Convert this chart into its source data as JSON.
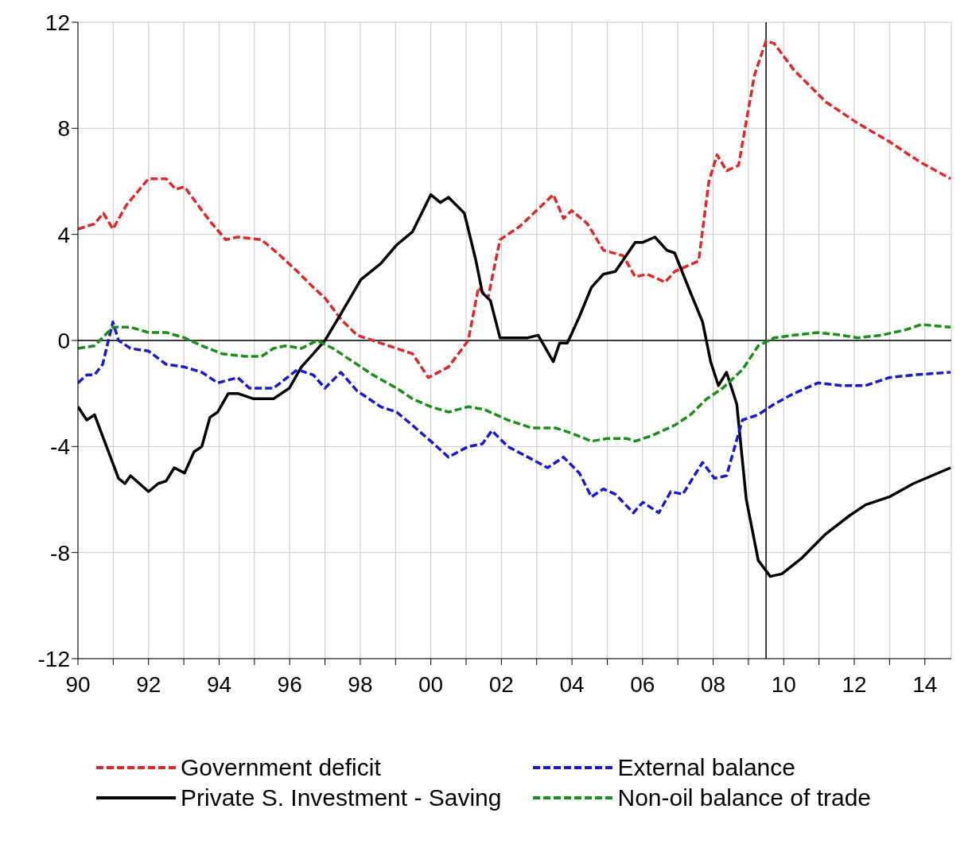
{
  "chart_data": {
    "type": "line",
    "xlim": [
      1990,
      2014.75
    ],
    "ylim": [
      -12,
      12
    ],
    "xticks": [
      {
        "value": 1990,
        "label": "90"
      },
      {
        "value": 1991,
        "label": null
      },
      {
        "value": 1992,
        "label": "92"
      },
      {
        "value": 1993,
        "label": null
      },
      {
        "value": 1994,
        "label": "94"
      },
      {
        "value": 1995,
        "label": null
      },
      {
        "value": 1996,
        "label": "96"
      },
      {
        "value": 1997,
        "label": null
      },
      {
        "value": 1998,
        "label": "98"
      },
      {
        "value": 1999,
        "label": null
      },
      {
        "value": 2000,
        "label": "00"
      },
      {
        "value": 2001,
        "label": null
      },
      {
        "value": 2002,
        "label": "02"
      },
      {
        "value": 2003,
        "label": null
      },
      {
        "value": 2004,
        "label": "04"
      },
      {
        "value": 2005,
        "label": null
      },
      {
        "value": 2006,
        "label": "06"
      },
      {
        "value": 2007,
        "label": null
      },
      {
        "value": 2008,
        "label": "08"
      },
      {
        "value": 2009,
        "label": null
      },
      {
        "value": 2010,
        "label": "10"
      },
      {
        "value": 2011,
        "label": null
      },
      {
        "value": 2012,
        "label": "12"
      },
      {
        "value": 2013,
        "label": null
      },
      {
        "value": 2014,
        "label": "14"
      }
    ],
    "yticks": [
      -12,
      -8,
      -4,
      0,
      4,
      8,
      12
    ],
    "grid": true,
    "legend": "bottom",
    "marker": "none",
    "ref_lines": [
      {
        "axis": "y",
        "value": 0,
        "color": "#000000"
      },
      {
        "axis": "x",
        "value": 2009.5,
        "color": "#000000"
      }
    ],
    "series": [
      {
        "name": "Government deficit",
        "color": "#e02828",
        "line_style": "dashed",
        "x": [
          1990,
          1990.47,
          1990.72,
          1990.99,
          1991.37,
          1992,
          1992.5,
          1992.77,
          1993.02,
          1993.29,
          1993.74,
          1994.19,
          1994.53,
          1995.2,
          1995.65,
          1996.22,
          1996.67,
          1997,
          1997.45,
          1997.91,
          1998.58,
          1999.48,
          1999.93,
          2000.5,
          2001.06,
          2001.35,
          2001.62,
          2001.96,
          2002.52,
          2003.47,
          2003.76,
          2003.99,
          2004.44,
          2004.89,
          2005.45,
          2005.79,
          2006.13,
          2006.64,
          2006.91,
          2007.59,
          2007.88,
          2008.11,
          2008.38,
          2008.72,
          2009.17,
          2009.5,
          2009.73,
          2010.29,
          2011.19,
          2012.09,
          2012.99,
          2013.9,
          2014.73
        ],
        "values": [
          4.2,
          4.4,
          4.8,
          4.2,
          5.1,
          6.1,
          6.1,
          5.7,
          5.8,
          5.3,
          4.5,
          3.8,
          3.9,
          3.8,
          3.3,
          2.6,
          2,
          1.6,
          0.8,
          0.2,
          -0.1,
          -0.5,
          -1.4,
          -1,
          0,
          2,
          1.6,
          3.8,
          4.3,
          5.5,
          4.6,
          4.9,
          4.4,
          3.4,
          3.2,
          2.4,
          2.5,
          2.2,
          2.6,
          3,
          6,
          7,
          6.4,
          6.6,
          10,
          11.3,
          11.2,
          10.2,
          9,
          8.2,
          7.5,
          6.7,
          6.1
        ]
      },
      {
        "name": "Private S. Investment - Saving",
        "color": "#000000",
        "line_style": "solid",
        "x": [
          1990,
          1990.25,
          1990.47,
          1990.81,
          1991.15,
          1991.33,
          1991.49,
          1992,
          1992.27,
          1992.5,
          1992.73,
          1993.02,
          1993.29,
          1993.51,
          1993.74,
          1993.96,
          1994.26,
          1994.53,
          1994.98,
          1995.54,
          1995.99,
          1996.33,
          1996.67,
          1997,
          1997.45,
          1998.02,
          1998.58,
          1999.03,
          1999.48,
          2000,
          2000.27,
          2000.5,
          2000.95,
          2001.28,
          2001.46,
          2001.69,
          2001.96,
          2002.75,
          2003.04,
          2003.47,
          2003.65,
          2003.87,
          2004.21,
          2004.55,
          2004.89,
          2005.23,
          2005.79,
          2006.01,
          2006.35,
          2006.69,
          2006.91,
          2007.36,
          2007.7,
          2007.93,
          2008.15,
          2008.38,
          2008.67,
          2008.94,
          2009.28,
          2009.62,
          2009.95,
          2010.52,
          2011.19,
          2011.87,
          2012.32,
          2012.99,
          2013.67,
          2014.73
        ],
        "values": [
          -2.5,
          -3,
          -2.8,
          -4,
          -5.2,
          -5.4,
          -5.1,
          -5.7,
          -5.4,
          -5.3,
          -4.8,
          -5,
          -4.2,
          -4,
          -2.9,
          -2.7,
          -2,
          -2,
          -2.2,
          -2.2,
          -1.8,
          -1,
          -0.5,
          0,
          1,
          2.3,
          2.9,
          3.6,
          4.1,
          5.5,
          5.2,
          5.4,
          4.8,
          3,
          1.8,
          1.5,
          0.1,
          0.1,
          0.2,
          -0.8,
          -0.1,
          -0.1,
          0.9,
          2,
          2.5,
          2.6,
          3.7,
          3.7,
          3.9,
          3.4,
          3.3,
          1.8,
          0.7,
          -0.8,
          -1.7,
          -1.2,
          -2.4,
          -6,
          -8.3,
          -8.9,
          -8.8,
          -8.2,
          -7.3,
          -6.6,
          -6.2,
          -5.9,
          -5.4,
          -4.8
        ]
      },
      {
        "name": "External balance",
        "color": "#1818d0",
        "line_style": "dashed",
        "x": [
          1990,
          1990.25,
          1990.47,
          1990.7,
          1990.99,
          1991.15,
          1991.49,
          1992,
          1992.5,
          1993.02,
          1993.51,
          1993.96,
          1994.53,
          1994.86,
          1995.54,
          1996.22,
          1996.67,
          1997,
          1997.45,
          1997.91,
          1998.58,
          1999.03,
          1999.48,
          2000,
          2000.5,
          2001.06,
          2001.46,
          2001.73,
          2002.18,
          2002.75,
          2003.31,
          2003.76,
          2004.21,
          2004.55,
          2004.89,
          2005.23,
          2005.74,
          2006.01,
          2006.46,
          2006.8,
          2007.14,
          2007.7,
          2008.04,
          2008.38,
          2008.83,
          2009.28,
          2009.73,
          2010.29,
          2010.97,
          2011.64,
          2012.32,
          2012.99,
          2013.67,
          2014.73
        ],
        "values": [
          -1.6,
          -1.3,
          -1.3,
          -0.9,
          0.7,
          0,
          -0.3,
          -0.4,
          -0.9,
          -1,
          -1.2,
          -1.6,
          -1.4,
          -1.8,
          -1.8,
          -1.1,
          -1.3,
          -1.8,
          -1.2,
          -1.9,
          -2.5,
          -2.7,
          -3.2,
          -3.8,
          -4.4,
          -4,
          -3.9,
          -3.4,
          -4,
          -4.4,
          -4.8,
          -4.4,
          -5,
          -5.9,
          -5.6,
          -5.8,
          -6.5,
          -6.1,
          -6.5,
          -5.7,
          -5.8,
          -4.6,
          -5.2,
          -5.1,
          -3,
          -2.8,
          -2.4,
          -2,
          -1.6,
          -1.7,
          -1.7,
          -1.4,
          -1.3,
          -1.2
        ]
      },
      {
        "name": "Non-oil balance of trade",
        "color": "#189018",
        "line_style": "dashed",
        "x": [
          1990,
          1990.47,
          1990.99,
          1991.49,
          1992,
          1992.5,
          1993.02,
          1993.51,
          1994.08,
          1994.75,
          1995.2,
          1995.54,
          1995.88,
          1996.33,
          1996.78,
          1997.23,
          1997.68,
          1998.36,
          1999.03,
          1999.48,
          2000,
          2000.5,
          2001.06,
          2001.51,
          2002.18,
          2002.86,
          2003.54,
          2003.99,
          2004.55,
          2005,
          2005.56,
          2005.79,
          2006.24,
          2006.91,
          2007.36,
          2007.82,
          2008.27,
          2008.83,
          2009.28,
          2009.73,
          2010.29,
          2010.97,
          2011.64,
          2012.09,
          2012.77,
          2013.45,
          2013.9,
          2014.73
        ],
        "values": [
          -0.3,
          -0.2,
          0.5,
          0.5,
          0.3,
          0.3,
          0.1,
          -0.2,
          -0.5,
          -0.6,
          -0.6,
          -0.3,
          -0.2,
          -0.3,
          0,
          -0.3,
          -0.7,
          -1.3,
          -1.8,
          -2.2,
          -2.5,
          -2.7,
          -2.5,
          -2.6,
          -3,
          -3.3,
          -3.3,
          -3.5,
          -3.8,
          -3.7,
          -3.7,
          -3.8,
          -3.6,
          -3.2,
          -2.8,
          -2.2,
          -1.8,
          -1.1,
          -0.2,
          0.1,
          0.2,
          0.3,
          0.2,
          0.1,
          0.2,
          0.4,
          0.6,
          0.5
        ]
      }
    ]
  }
}
